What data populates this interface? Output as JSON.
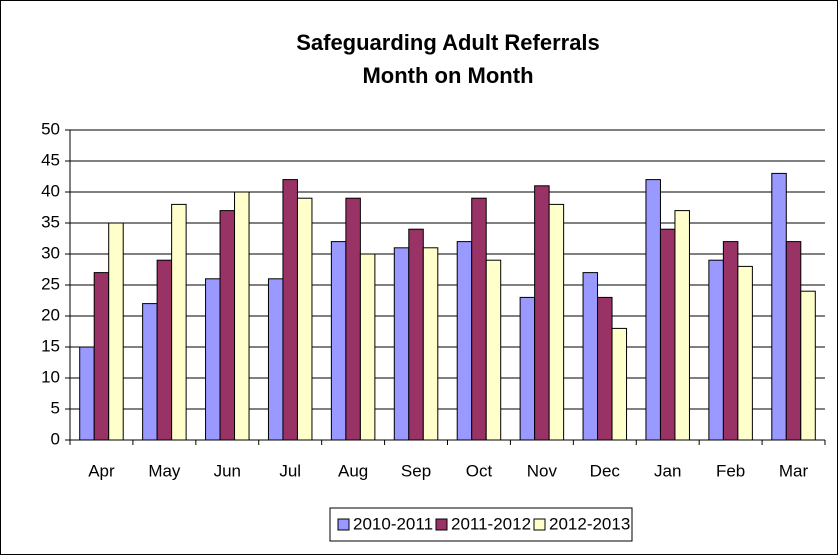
{
  "chart_data": {
    "type": "bar",
    "title": [
      "Safeguarding Adult Referrals",
      "Month on Month"
    ],
    "categories": [
      "Apr",
      "May",
      "Jun",
      "Jul",
      "Aug",
      "Sep",
      "Oct",
      "Nov",
      "Dec",
      "Jan",
      "Feb",
      "Mar"
    ],
    "series": [
      {
        "name": "2010-2011",
        "color": "#9999ff",
        "values": [
          15,
          22,
          26,
          26,
          32,
          31,
          32,
          23,
          27,
          42,
          29,
          43
        ]
      },
      {
        "name": "2011-2012",
        "color": "#993366",
        "values": [
          27,
          29,
          37,
          42,
          39,
          34,
          39,
          41,
          23,
          34,
          32,
          32
        ]
      },
      {
        "name": "2012-2013",
        "color": "#ffffcc",
        "values": [
          35,
          38,
          40,
          39,
          30,
          31,
          29,
          38,
          18,
          37,
          28,
          24
        ]
      }
    ],
    "ylim": [
      0,
      50
    ],
    "yticks": [
      0,
      5,
      10,
      15,
      20,
      25,
      30,
      35,
      40,
      45,
      50
    ],
    "grid": true,
    "legend": "bottom"
  }
}
